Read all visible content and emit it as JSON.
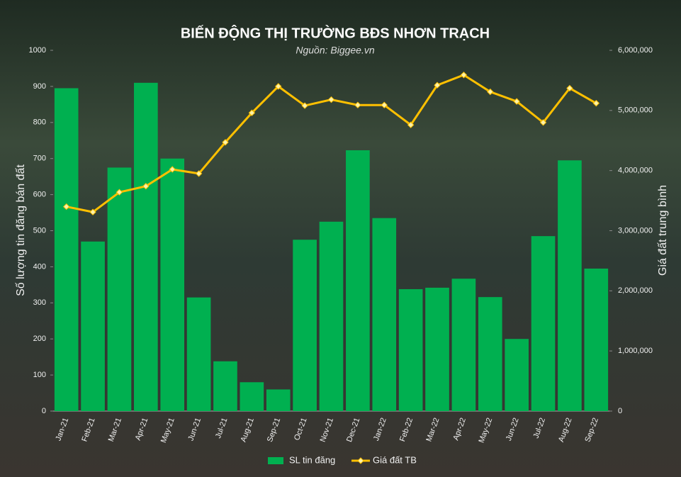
{
  "chart_data": {
    "type": "bar-line",
    "title": "BIẾN ĐỘNG THỊ TRƯỜNG BĐS NHƠN TRẠCH",
    "subtitle": "Nguồn: Biggee.vn",
    "y_label": "Số lượng tin đăng bán đất",
    "y2_label": "Giá đất trung bình",
    "categories": [
      "Jan-21",
      "Feb-21",
      "Mar-21",
      "Apr-21",
      "May-21",
      "Jun-21",
      "Jul-21",
      "Aug-21",
      "Sep-21",
      "Oct-21",
      "Nov-21",
      "Dec-21",
      "Jan-22",
      "Feb-22",
      "Mar-22",
      "Apr-22",
      "May-22",
      "Jun-22",
      "Jul-22",
      "Aug-22",
      "Sep-22"
    ],
    "series": [
      {
        "name": "SL tin đăng",
        "type": "bar",
        "color": "#00b050",
        "values": [
          895,
          470,
          675,
          910,
          700,
          315,
          138,
          80,
          60,
          475,
          525,
          723,
          535,
          338,
          342,
          367,
          316,
          200,
          485,
          695,
          395
        ]
      },
      {
        "name": "Giá đất TB",
        "type": "line",
        "axis": "y2",
        "color": "#ffc000",
        "values": [
          3400000,
          3310000,
          3640000,
          3740000,
          4020000,
          3950000,
          4470000,
          4960000,
          5400000,
          5080000,
          5180000,
          5090000,
          5090000,
          4760000,
          5420000,
          5590000,
          5310000,
          5150000,
          4800000,
          5370000,
          5120000
        ]
      }
    ],
    "ylim": [
      0,
      1000
    ],
    "yticks": [
      0,
      100,
      200,
      300,
      400,
      500,
      600,
      700,
      800,
      900,
      1000
    ],
    "y2lim": [
      0,
      6000000
    ],
    "y2ticks": [
      0,
      {
        "value": 1000000,
        "label": "1,000,000"
      },
      {
        "value": 2000000,
        "label": "2,000,000"
      },
      {
        "value": 3000000,
        "label": "3,000,000"
      },
      {
        "value": 4000000,
        "label": "4,000,000"
      },
      {
        "value": 5000000,
        "label": "5,000,000"
      },
      {
        "value": 6000000,
        "label": "6,000,000"
      }
    ],
    "legend": "bottom"
  }
}
